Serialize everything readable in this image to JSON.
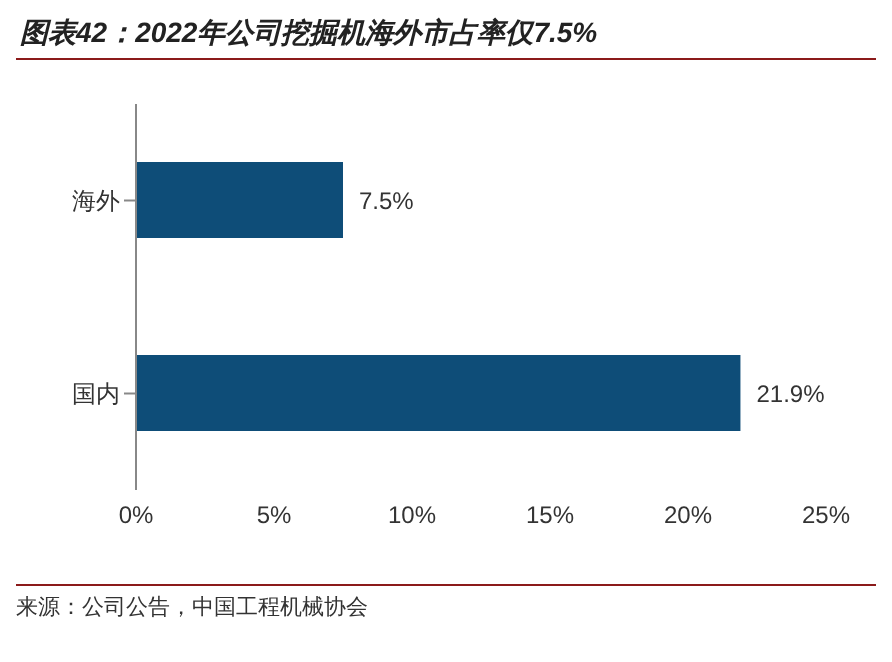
{
  "chart_data": {
    "type": "bar",
    "title": "图表42：2022年公司挖掘机海外市占率仅7.5%",
    "orientation": "horizontal",
    "categories": [
      "海外",
      "国内"
    ],
    "values": [
      7.5,
      21.9
    ],
    "value_labels": [
      "7.5%",
      "21.9%"
    ],
    "color": "#0e4d78",
    "xlim": [
      0,
      25
    ],
    "xticks": [
      {
        "value": 0,
        "label": "0%"
      },
      {
        "value": 5,
        "label": "5%"
      },
      {
        "value": 10,
        "label": "10%"
      },
      {
        "value": 15,
        "label": "15%"
      },
      {
        "value": 20,
        "label": "20%"
      },
      {
        "value": 25,
        "label": "25%"
      }
    ],
    "grid": false,
    "annotations": [
      "来源：公司公告，中国工程机械协会"
    ]
  }
}
